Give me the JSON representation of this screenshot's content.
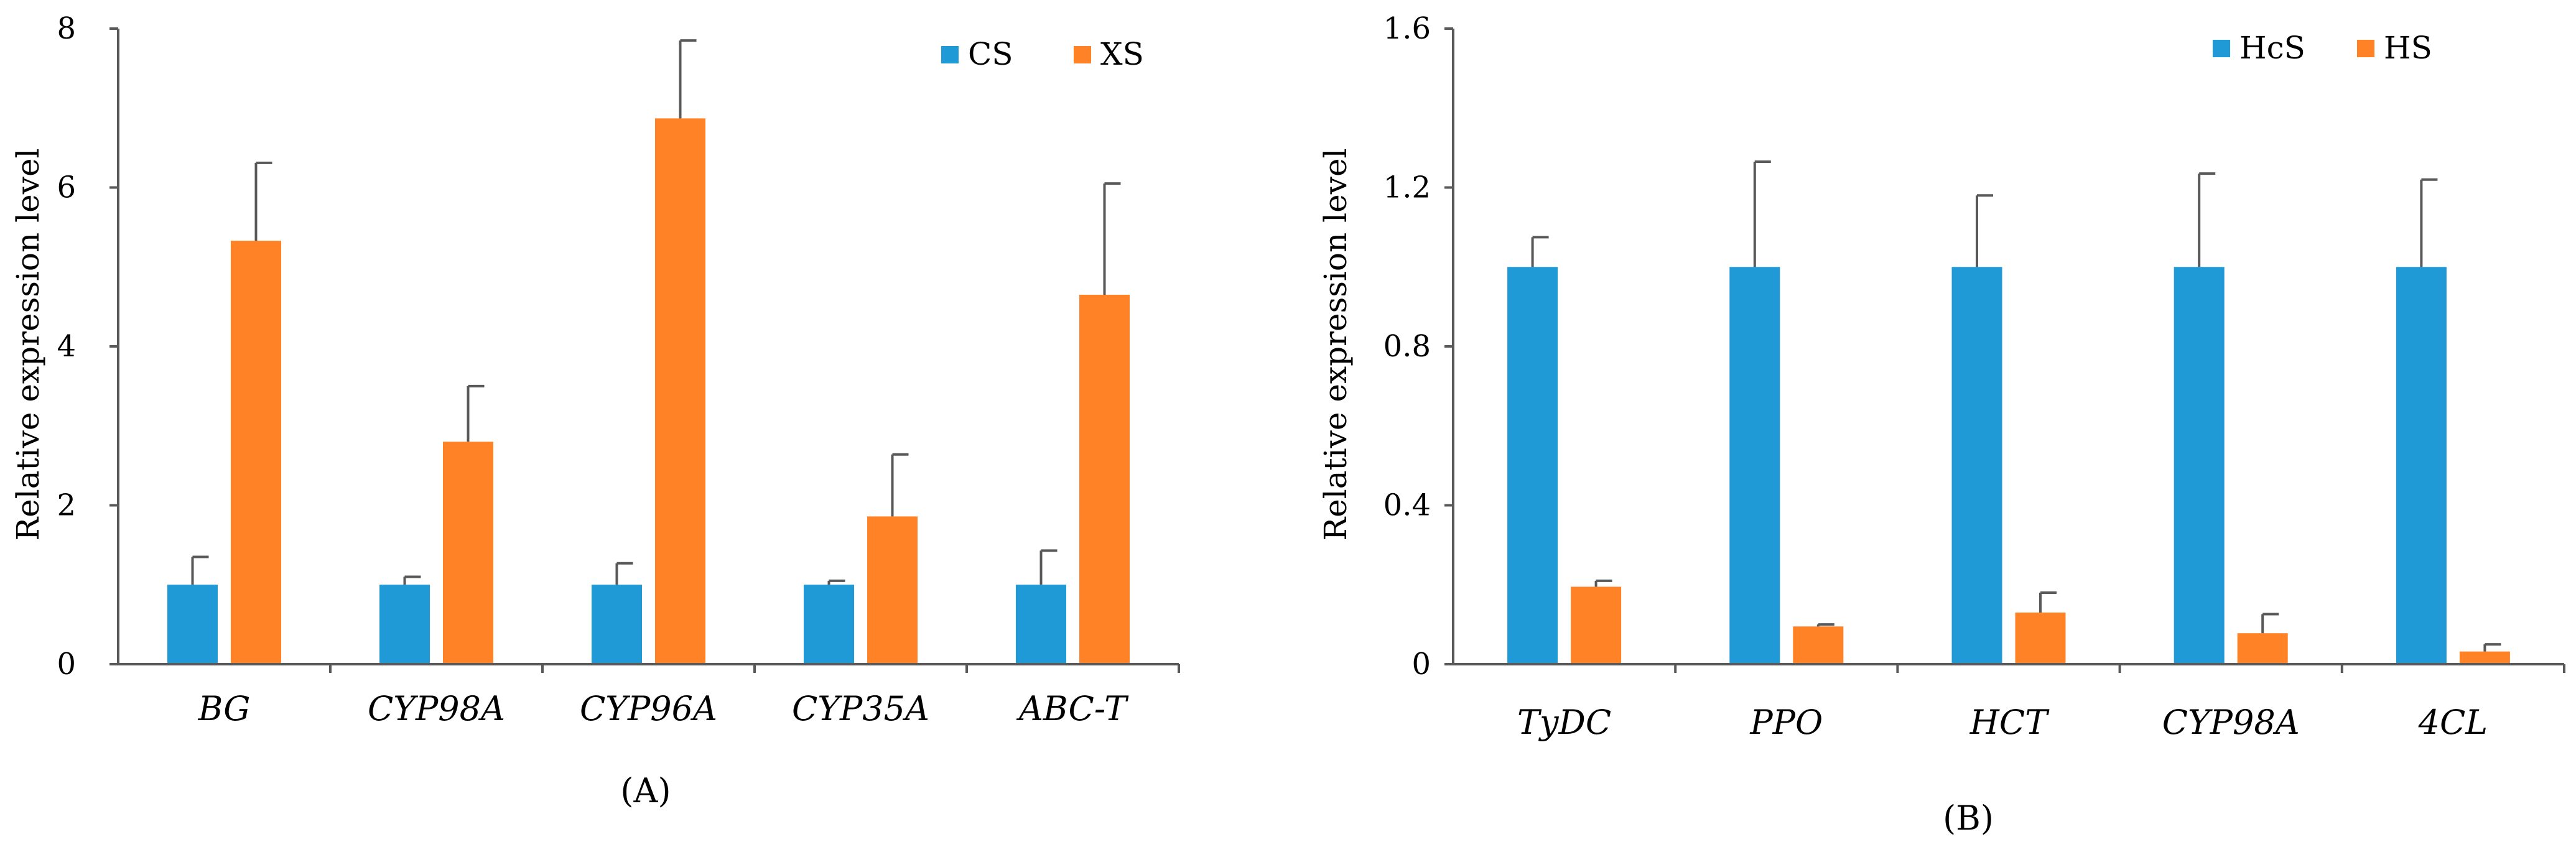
{
  "colors": {
    "series1": "#1F9AD6",
    "series2": "#FF8227",
    "axis": "#595959",
    "error": "#595959"
  },
  "chart_data": [
    {
      "type": "bar",
      "panel_label": "(A)",
      "title": "",
      "xlabel": "",
      "ylabel": "Relative expression level",
      "ylim": [
        0,
        8
      ],
      "yticks": [
        0,
        2,
        4,
        6,
        8
      ],
      "ytick_labels": [
        "0",
        "2",
        "4",
        "6",
        "8"
      ],
      "grid": false,
      "legend_position": "top-right",
      "categories": [
        "BG",
        "CYP98A",
        "CYP96A",
        "CYP35A",
        "ABC-T"
      ],
      "series": [
        {
          "name": "CS",
          "values": [
            1.0,
            1.0,
            1.0,
            1.0,
            1.0
          ],
          "errors": [
            0.35,
            0.1,
            0.27,
            0.05,
            0.43
          ]
        },
        {
          "name": "XS",
          "values": [
            5.33,
            2.8,
            6.87,
            1.86,
            4.65
          ],
          "errors": [
            0.98,
            0.7,
            0.98,
            0.78,
            1.4
          ]
        }
      ]
    },
    {
      "type": "bar",
      "panel_label": "(B)",
      "title": "",
      "xlabel": "",
      "ylabel": "Relative expression level",
      "ylim": [
        0,
        1.6
      ],
      "yticks": [
        0,
        0.4,
        0.8,
        1.2,
        1.6
      ],
      "ytick_labels": [
        "0",
        "0.4",
        "0.8",
        "1.2",
        "1.6"
      ],
      "grid": false,
      "legend_position": "top-right",
      "categories": [
        "TyDC",
        "PPO",
        "HCT",
        "CYP98A",
        "4CL"
      ],
      "series": [
        {
          "name": "HcS",
          "values": [
            1.0,
            1.0,
            1.0,
            1.0,
            1.0
          ],
          "errors": [
            0.075,
            0.265,
            0.18,
            0.235,
            0.22
          ]
        },
        {
          "name": "HS",
          "values": [
            0.195,
            0.095,
            0.13,
            0.078,
            0.032
          ],
          "errors": [
            0.015,
            0.005,
            0.05,
            0.048,
            0.018
          ]
        }
      ]
    }
  ]
}
